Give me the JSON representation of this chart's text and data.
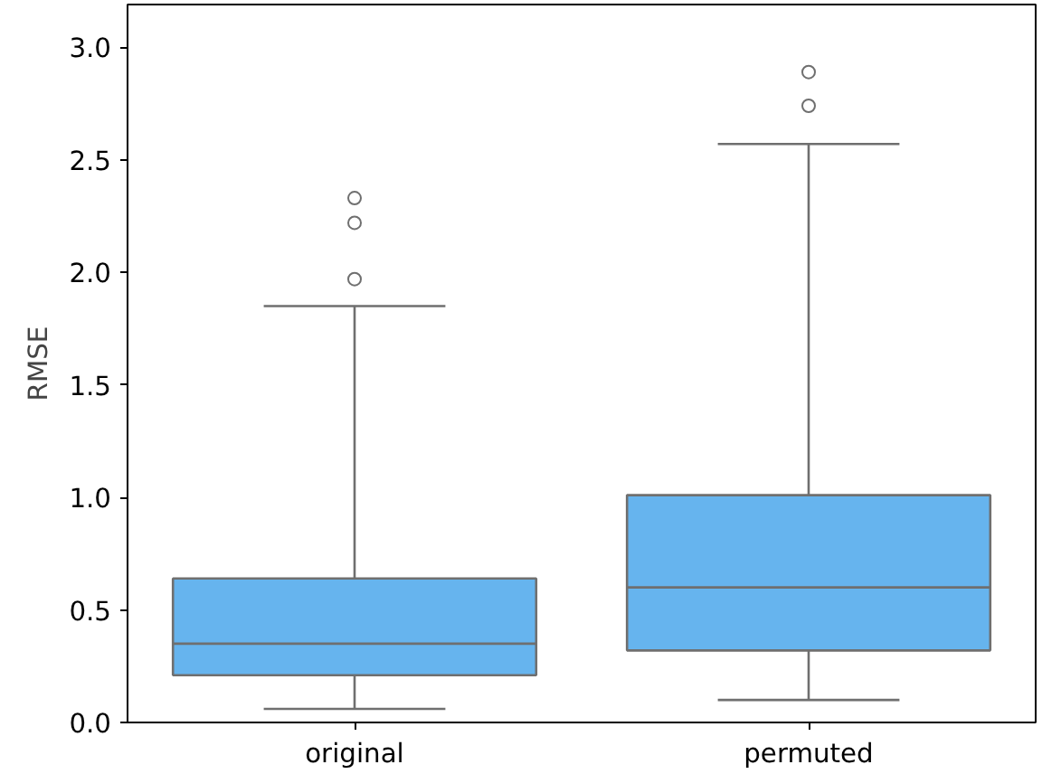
{
  "chart_data": {
    "type": "box",
    "ylabel": "RMSE",
    "categories": [
      "original",
      "permuted"
    ],
    "color": "#66b4ee",
    "boxes": [
      {
        "low": 0.06,
        "q1": 0.21,
        "median": 0.35,
        "q3": 0.64,
        "high": 1.85,
        "outliers": [
          1.97,
          2.22,
          2.33
        ]
      },
      {
        "low": 0.1,
        "q1": 0.32,
        "median": 0.6,
        "q3": 1.01,
        "high": 2.57,
        "outliers": [
          2.74,
          2.89
        ]
      }
    ],
    "ylim": [
      0,
      3.19
    ],
    "yticks": [
      {
        "value": 0,
        "label": "0.0"
      },
      0.5,
      {
        "value": 1,
        "label": "1.0"
      },
      1.5,
      {
        "value": 2,
        "label": "2.0"
      },
      2.5,
      {
        "value": 3,
        "label": "3.0"
      }
    ],
    "grid": false
  }
}
